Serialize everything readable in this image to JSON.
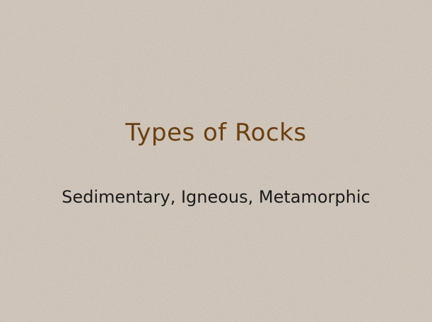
{
  "slide": {
    "title": "Types of Rocks",
    "subtitle": "Sedimentary, Igneous, Metamorphic"
  },
  "colors": {
    "background": "#9e8f80",
    "title": "#6b3f12",
    "subtitle": "#1a1a1a"
  }
}
